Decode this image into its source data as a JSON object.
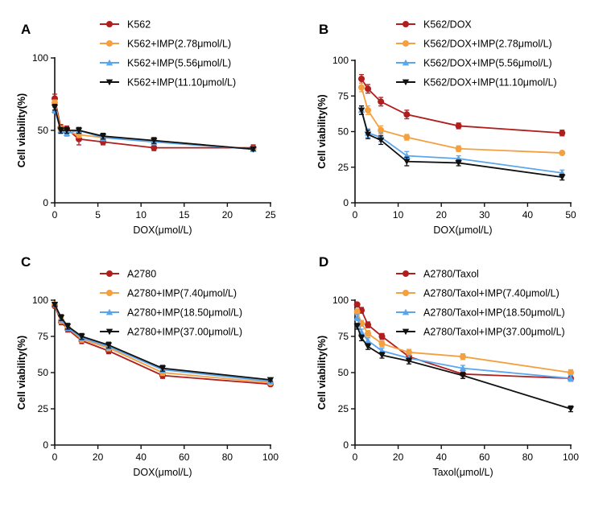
{
  "figure": {
    "colors": {
      "axis": "#111111"
    }
  },
  "chart_data": [
    {
      "type": "line",
      "panel": "A",
      "xlabel": "DOX(μmol/L)",
      "ylabel": "Cell viability(%)",
      "xlim": [
        0,
        25
      ],
      "ylim": [
        0,
        100
      ],
      "xticks": [
        0,
        5,
        10,
        15,
        20,
        25
      ],
      "yticks": [
        0,
        50,
        100
      ],
      "legend_position": "top-right",
      "series": [
        {
          "name": "K562",
          "color": "#b01e1e",
          "marker": "circle",
          "x": [
            0,
            0.7,
            1.4,
            2.8,
            5.6,
            11.5,
            23
          ],
          "y": [
            72,
            52,
            51,
            44,
            42,
            38,
            38
          ],
          "err": [
            3,
            2,
            2,
            4,
            2,
            2,
            2
          ]
        },
        {
          "name": "K562+IMP(2.78μmol/L)",
          "color": "#f5a040",
          "marker": "circle",
          "x": [
            0,
            0.7,
            1.4,
            2.8,
            5.6,
            11.5,
            23
          ],
          "y": [
            69,
            51,
            49,
            47,
            45,
            43,
            37
          ],
          "err": [
            2,
            2,
            2,
            2,
            2,
            2,
            1
          ]
        },
        {
          "name": "K562+IMP(5.56μmol/L)",
          "color": "#5aa6ee",
          "marker": "triangle-up",
          "x": [
            0,
            0.7,
            1.4,
            2.8,
            5.6,
            11.5,
            23
          ],
          "y": [
            64,
            50,
            48,
            50,
            45,
            42,
            37
          ],
          "err": [
            2,
            2,
            2,
            2,
            2,
            2,
            1
          ]
        },
        {
          "name": "K562+IMP(11.10μmol/L)",
          "color": "#111111",
          "marker": "triangle-down",
          "x": [
            0,
            0.7,
            1.4,
            2.8,
            5.6,
            11.5,
            23
          ],
          "y": [
            66,
            50,
            50,
            50,
            46,
            43,
            37
          ],
          "err": [
            2,
            2,
            2,
            2,
            2,
            2,
            1
          ]
        }
      ]
    },
    {
      "type": "line",
      "panel": "B",
      "xlabel": "DOX(μmol/L)",
      "ylabel": "Cell viability(%)",
      "xlim": [
        0,
        50
      ],
      "ylim": [
        0,
        100
      ],
      "xticks": [
        0,
        10,
        20,
        30,
        40,
        50
      ],
      "yticks": [
        0,
        25,
        50,
        75,
        100
      ],
      "legend_position": "top-right",
      "series": [
        {
          "name": "K562/DOX",
          "color": "#b01e1e",
          "marker": "circle",
          "x": [
            1.5,
            3,
            6,
            12,
            24,
            48
          ],
          "y": [
            87,
            80,
            71,
            62,
            54,
            49
          ],
          "err": [
            3,
            3,
            3,
            3,
            2,
            2
          ]
        },
        {
          "name": "K562/DOX+IMP(2.78μmol/L)",
          "color": "#f5a040",
          "marker": "circle",
          "x": [
            1.5,
            3,
            6,
            12,
            24,
            48
          ],
          "y": [
            81,
            65,
            51,
            46,
            38,
            35
          ],
          "err": [
            3,
            3,
            3,
            2,
            2,
            1
          ]
        },
        {
          "name": "K562/DOX+IMP(5.56μmol/L)",
          "color": "#5aa6ee",
          "marker": "triangle-up",
          "x": [
            1.5,
            3,
            6,
            12,
            24,
            48
          ],
          "y": [
            65,
            49,
            46,
            33,
            31,
            21
          ],
          "err": [
            3,
            3,
            3,
            3,
            2,
            2
          ]
        },
        {
          "name": "K562/DOX+IMP(11.10μmol/L)",
          "color": "#111111",
          "marker": "triangle-down",
          "x": [
            1.5,
            3,
            6,
            12,
            24,
            48
          ],
          "y": [
            65,
            48,
            44,
            29,
            28,
            18
          ],
          "err": [
            3,
            3,
            3,
            3,
            2,
            2
          ]
        }
      ]
    },
    {
      "type": "line",
      "panel": "C",
      "xlabel": "DOX(μmol/L)",
      "ylabel": "Cell viability(%)",
      "xlim": [
        0,
        100
      ],
      "ylim": [
        0,
        100
      ],
      "xticks": [
        0,
        20,
        40,
        60,
        80,
        100
      ],
      "yticks": [
        0,
        25,
        50,
        75,
        100
      ],
      "legend_position": "top-right",
      "series": [
        {
          "name": "A2780",
          "color": "#b01e1e",
          "marker": "circle",
          "x": [
            0,
            3,
            6,
            12.5,
            25,
            50,
            100
          ],
          "y": [
            96,
            85,
            80,
            72,
            65,
            48,
            42
          ],
          "err": [
            1,
            2,
            2,
            2,
            2,
            2,
            1
          ]
        },
        {
          "name": "A2780+IMP(7.40μmol/L)",
          "color": "#f5a040",
          "marker": "circle",
          "x": [
            0,
            3,
            6,
            12.5,
            25,
            50,
            100
          ],
          "y": [
            97,
            86,
            81,
            73,
            67,
            50,
            43
          ],
          "err": [
            1,
            2,
            2,
            2,
            2,
            2,
            1
          ]
        },
        {
          "name": "A2780+IMP(18.50μmol/L)",
          "color": "#5aa6ee",
          "marker": "triangle-up",
          "x": [
            0,
            3,
            6,
            12.5,
            25,
            50,
            100
          ],
          "y": [
            97,
            87,
            81,
            74,
            68,
            52,
            44
          ],
          "err": [
            1,
            2,
            2,
            2,
            2,
            2,
            1
          ]
        },
        {
          "name": "A2780+IMP(37.00μmol/L)",
          "color": "#111111",
          "marker": "triangle-down",
          "x": [
            0,
            3,
            6,
            12.5,
            25,
            50,
            100
          ],
          "y": [
            97,
            88,
            82,
            75,
            69,
            53,
            45
          ],
          "err": [
            1,
            2,
            2,
            2,
            2,
            2,
            1
          ]
        }
      ]
    },
    {
      "type": "line",
      "panel": "D",
      "xlabel": "Taxol(μmol/L)",
      "ylabel": "Cell viability(%)",
      "xlim": [
        0,
        100
      ],
      "ylim": [
        0,
        100
      ],
      "xticks": [
        0,
        20,
        40,
        60,
        80,
        100
      ],
      "yticks": [
        0,
        25,
        50,
        75,
        100
      ],
      "legend_position": "top-right",
      "series": [
        {
          "name": "A2780/Taxol",
          "color": "#b01e1e",
          "marker": "circle",
          "x": [
            1,
            3,
            6,
            12.5,
            25,
            50,
            100
          ],
          "y": [
            97,
            93,
            83,
            75,
            61,
            49,
            46
          ],
          "err": [
            1,
            2,
            2,
            2,
            2,
            3,
            2
          ]
        },
        {
          "name": "A2780/Taxol+IMP(7.40μmol/L)",
          "color": "#f5a040",
          "marker": "circle",
          "x": [
            1,
            3,
            6,
            12.5,
            25,
            50,
            100
          ],
          "y": [
            92,
            84,
            77,
            70,
            64,
            61,
            50
          ],
          "err": [
            2,
            2,
            2,
            2,
            2,
            2,
            2
          ]
        },
        {
          "name": "A2780/Taxol+IMP(18.50μmol/L)",
          "color": "#5aa6ee",
          "marker": "triangle-up",
          "x": [
            1,
            3,
            6,
            12.5,
            25,
            50,
            100
          ],
          "y": [
            88,
            78,
            72,
            65,
            60,
            53,
            46
          ],
          "err": [
            2,
            2,
            2,
            2,
            2,
            2,
            2
          ]
        },
        {
          "name": "A2780/Taxol+IMP(37.00μmol/L)",
          "color": "#111111",
          "marker": "triangle-down",
          "x": [
            1,
            3,
            6,
            12.5,
            25,
            50,
            100
          ],
          "y": [
            82,
            74,
            68,
            62,
            58,
            48,
            25
          ],
          "err": [
            2,
            2,
            2,
            2,
            2,
            2,
            2
          ]
        }
      ]
    }
  ]
}
